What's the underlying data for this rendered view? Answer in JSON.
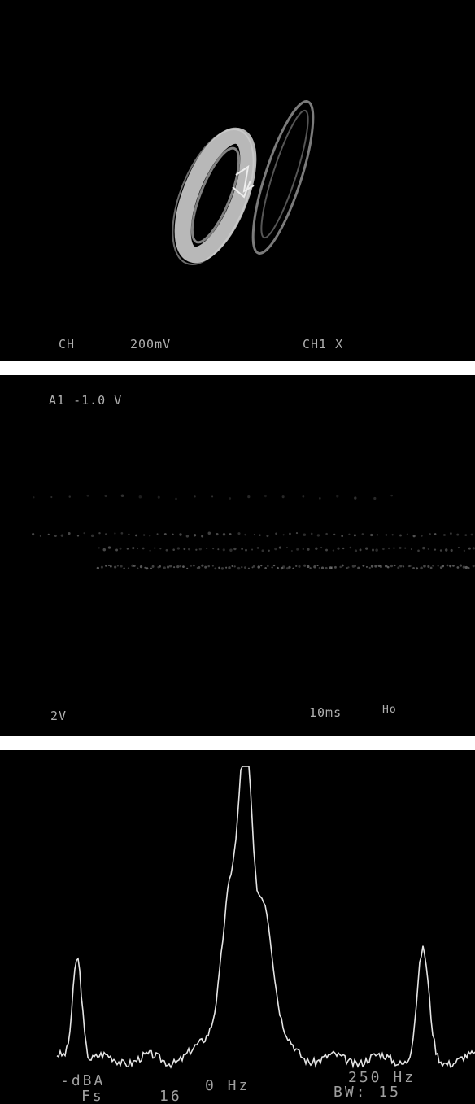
{
  "panel1": {
    "readouts": {
      "ch": "CH",
      "volts_div": "200mV",
      "mode": "CH1 X"
    }
  },
  "panel2": {
    "readouts": {
      "trigger": "A1 -1.0 V",
      "volts_div": "2V",
      "time_div": "10ms",
      "marker": "Ho"
    }
  },
  "panel3": {
    "readouts": {
      "ref": "-dBA",
      "scale": "Fs",
      "scale_value": "16",
      "center": "0 Hz",
      "span": "250 Hz",
      "bandwidth": "BW: 15"
    }
  },
  "colors": {
    "screen": "#000000",
    "trace": "#dcdcdc",
    "text": "#cfcfcf"
  }
}
